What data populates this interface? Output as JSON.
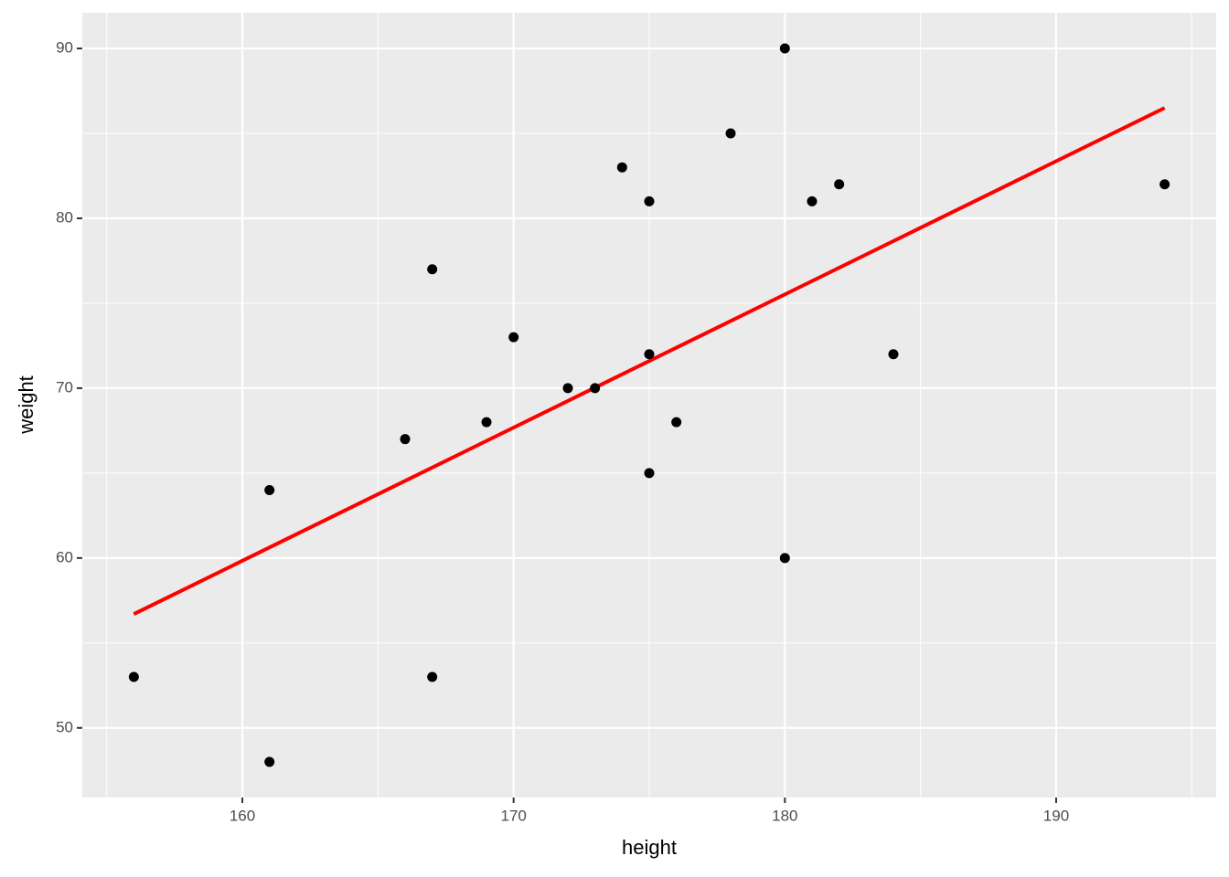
{
  "chart_data": {
    "type": "scatter",
    "x_label": "height",
    "y_label": "weight",
    "points": {
      "x": [
        156,
        161,
        161,
        166,
        167,
        167,
        169,
        170,
        172,
        173,
        174,
        175,
        175,
        175,
        176,
        178,
        180,
        180,
        181,
        182,
        184,
        194
      ],
      "y": [
        53,
        64,
        48,
        67,
        77,
        53,
        68,
        73,
        70,
        70,
        83,
        81,
        72,
        65,
        68,
        85,
        90,
        60,
        81,
        82,
        72,
        82
      ],
      "color": "#000000"
    },
    "fit_line": {
      "x": [
        156,
        194
      ],
      "y": [
        56.7,
        86.5
      ],
      "color": "#ff0000"
    },
    "xlim": [
      154.1,
      195.9
    ],
    "ylim": [
      45.9,
      92.1
    ],
    "xticks": [
      160,
      170,
      180,
      190
    ],
    "yticks": [
      50,
      60,
      70,
      80,
      90
    ],
    "x_minor_ticks": [
      155,
      165,
      175,
      185,
      195
    ],
    "y_minor_ticks": [
      55,
      65,
      75,
      85
    ],
    "grid": true,
    "panel_color": "#ebebeb"
  }
}
